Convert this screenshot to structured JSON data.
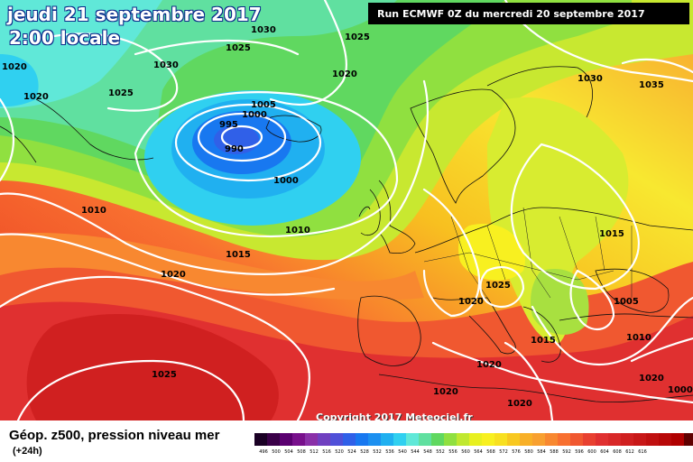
{
  "header": {
    "date_title": "jeudi 21 septembre 2017",
    "time_title": "2:00 locale",
    "run_info": "Run ECMWF 0Z du mercredi 20 septembre 2017"
  },
  "footer": {
    "copyright": "Copyright 2017 Meteociel.fr",
    "legend_title": "Géop. z500, pression niveau mer",
    "legend_subtitle": "(+24h)"
  },
  "legend_scale": {
    "colors": [
      "#1a0024",
      "#3a0048",
      "#5a0070",
      "#78108c",
      "#8a30a8",
      "#7040c0",
      "#5050d8",
      "#3060e8",
      "#1878f0",
      "#1c90f0",
      "#20b0f0",
      "#30d0f0",
      "#60e8d8",
      "#60e0a0",
      "#60d860",
      "#90e040",
      "#c0e830",
      "#e8f020",
      "#f8f020",
      "#f8e020",
      "#f8c820",
      "#f8b028",
      "#f8a030",
      "#f88830",
      "#f87030",
      "#f05830",
      "#e84030",
      "#e03030",
      "#d82828",
      "#d02020",
      "#c81818",
      "#c01010",
      "#b80808",
      "#b00000",
      "#600000",
      "#200000"
    ],
    "ticks": [
      "496",
      "500",
      "504",
      "508",
      "512",
      "516",
      "520",
      "524",
      "528",
      "532",
      "536",
      "540",
      "544",
      "548",
      "552",
      "556",
      "560",
      "564",
      "568",
      "572",
      "576",
      "580",
      "584",
      "588",
      "592",
      "596",
      "600",
      "604",
      "608",
      "612",
      "616"
    ]
  },
  "isobar_labels": [
    {
      "text": "1030",
      "id": "isobar-1030-a"
    },
    {
      "text": "1025",
      "id": "isobar-1025-a"
    },
    {
      "text": "1030",
      "id": "isobar-1030-b"
    },
    {
      "text": "1020",
      "id": "isobar-1020-a"
    },
    {
      "text": "1020",
      "id": "isobar-1020-b"
    },
    {
      "text": "1025",
      "id": "isobar-1025-b"
    },
    {
      "text": "1025",
      "id": "isobar-1025-c"
    },
    {
      "text": "1020",
      "id": "isobar-1020-c"
    },
    {
      "text": "1005",
      "id": "isobar-1005-a"
    },
    {
      "text": "1000",
      "id": "isobar-1000-a"
    },
    {
      "text": "995",
      "id": "isobar-995"
    },
    {
      "text": "990",
      "id": "isobar-990"
    },
    {
      "text": "1000",
      "id": "isobar-1000-b"
    },
    {
      "text": "1010",
      "id": "isobar-1010-a"
    },
    {
      "text": "1010",
      "id": "isobar-1010-b"
    },
    {
      "text": "1015",
      "id": "isobar-1015-a"
    },
    {
      "text": "1020",
      "id": "isobar-1020-d"
    },
    {
      "text": "1030",
      "id": "isobar-1030-c"
    },
    {
      "text": "1035",
      "id": "isobar-1035"
    },
    {
      "text": "1015",
      "id": "isobar-1015-b"
    },
    {
      "text": "1025",
      "id": "isobar-1025-d"
    },
    {
      "text": "1020",
      "id": "isobar-1020-e"
    },
    {
      "text": "1005",
      "id": "isobar-1005-b"
    },
    {
      "text": "1015",
      "id": "isobar-1015-c"
    },
    {
      "text": "1010",
      "id": "isobar-1010-c"
    },
    {
      "text": "1025",
      "id": "isobar-1025-e"
    },
    {
      "text": "1020",
      "id": "isobar-1020-f"
    },
    {
      "text": "1020",
      "id": "isobar-1020-g"
    },
    {
      "text": "1020",
      "id": "isobar-1020-h"
    },
    {
      "text": "1020",
      "id": "isobar-1020-i"
    },
    {
      "text": "1000",
      "id": "isobar-1000-c"
    }
  ]
}
